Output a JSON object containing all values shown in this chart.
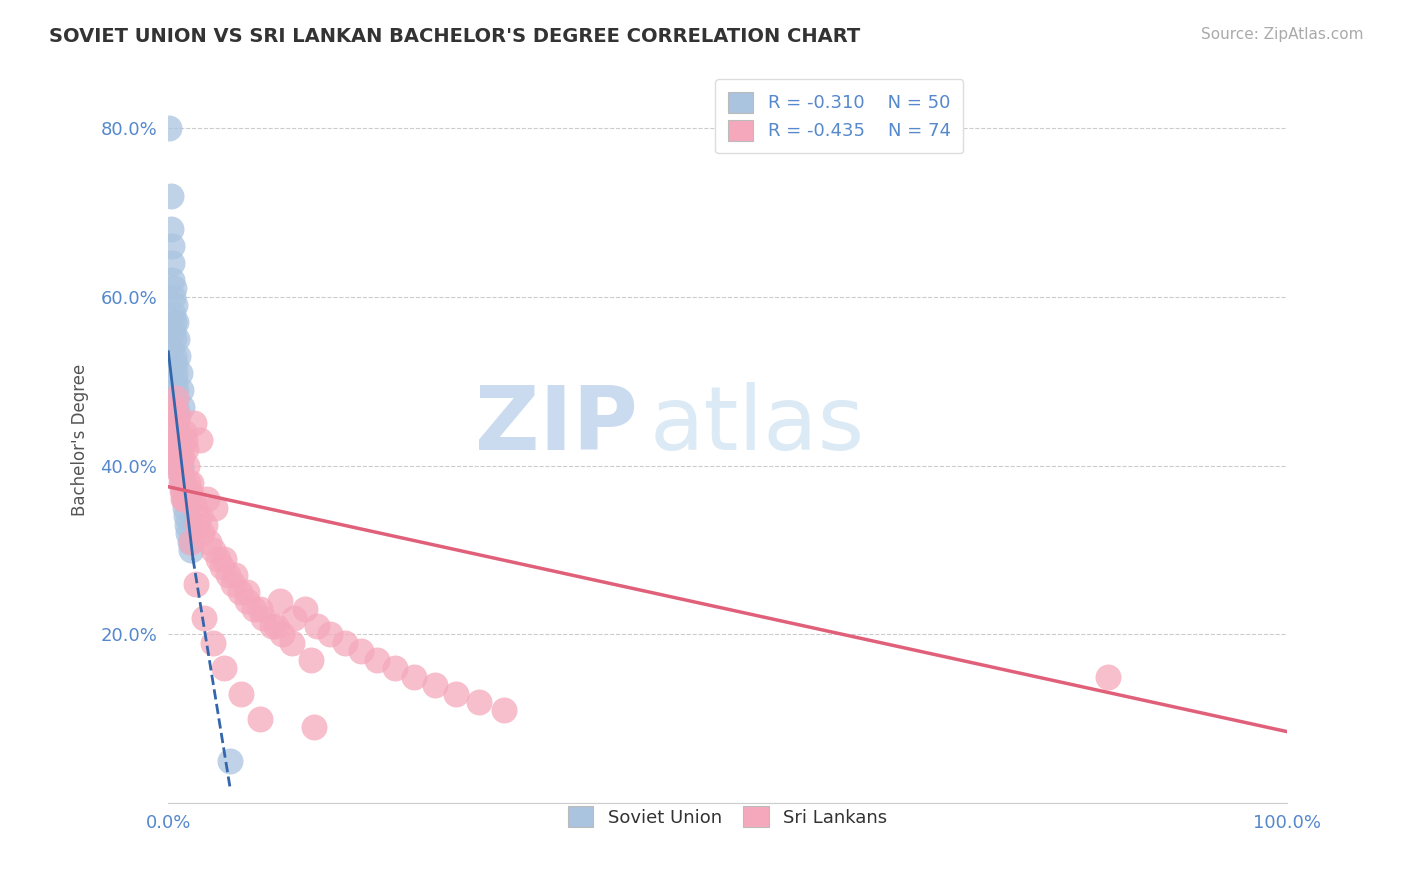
{
  "title": "SOVIET UNION VS SRI LANKAN BACHELOR'S DEGREE CORRELATION CHART",
  "source": "Source: ZipAtlas.com",
  "ylabel": "Bachelor's Degree",
  "blue_R": -0.31,
  "blue_N": 50,
  "pink_R": -0.435,
  "pink_N": 74,
  "blue_color": "#aac4e0",
  "pink_color": "#f5a8bc",
  "blue_line_color": "#3366aa",
  "pink_line_color": "#e0607a",
  "watermark_zip": "ZIP",
  "watermark_atlas": "atlas",
  "blue_scatter_x": [
    0.001,
    0.002,
    0.002,
    0.003,
    0.003,
    0.003,
    0.004,
    0.004,
    0.004,
    0.005,
    0.005,
    0.005,
    0.006,
    0.006,
    0.006,
    0.007,
    0.007,
    0.007,
    0.008,
    0.008,
    0.008,
    0.009,
    0.009,
    0.01,
    0.01,
    0.01,
    0.011,
    0.011,
    0.012,
    0.012,
    0.013,
    0.013,
    0.014,
    0.015,
    0.015,
    0.016,
    0.017,
    0.018,
    0.019,
    0.02,
    0.005,
    0.006,
    0.007,
    0.008,
    0.009,
    0.01,
    0.011,
    0.012,
    0.002,
    0.055
  ],
  "blue_scatter_y": [
    0.8,
    0.72,
    0.68,
    0.66,
    0.64,
    0.62,
    0.6,
    0.58,
    0.56,
    0.57,
    0.55,
    0.53,
    0.51,
    0.52,
    0.5,
    0.49,
    0.48,
    0.47,
    0.46,
    0.45,
    0.44,
    0.43,
    0.42,
    0.41,
    0.4,
    0.42,
    0.39,
    0.4,
    0.38,
    0.39,
    0.37,
    0.38,
    0.36,
    0.35,
    0.36,
    0.34,
    0.33,
    0.32,
    0.31,
    0.3,
    0.61,
    0.59,
    0.57,
    0.55,
    0.53,
    0.51,
    0.49,
    0.47,
    0.54,
    0.05
  ],
  "pink_scatter_x": [
    0.003,
    0.005,
    0.006,
    0.007,
    0.008,
    0.009,
    0.01,
    0.011,
    0.012,
    0.013,
    0.014,
    0.015,
    0.016,
    0.017,
    0.018,
    0.019,
    0.02,
    0.022,
    0.024,
    0.026,
    0.028,
    0.03,
    0.033,
    0.036,
    0.04,
    0.044,
    0.048,
    0.053,
    0.058,
    0.064,
    0.07,
    0.077,
    0.085,
    0.093,
    0.102,
    0.112,
    0.122,
    0.133,
    0.145,
    0.158,
    0.172,
    0.187,
    0.203,
    0.22,
    0.238,
    0.257,
    0.278,
    0.3,
    0.023,
    0.028,
    0.035,
    0.042,
    0.05,
    0.06,
    0.07,
    0.082,
    0.096,
    0.111,
    0.128,
    0.007,
    0.009,
    0.012,
    0.015,
    0.02,
    0.025,
    0.032,
    0.04,
    0.05,
    0.065,
    0.082,
    0.1,
    0.13,
    0.84,
    0.004
  ],
  "pink_scatter_y": [
    0.46,
    0.43,
    0.44,
    0.42,
    0.41,
    0.4,
    0.39,
    0.38,
    0.37,
    0.36,
    0.44,
    0.43,
    0.42,
    0.4,
    0.38,
    0.37,
    0.38,
    0.36,
    0.35,
    0.33,
    0.34,
    0.32,
    0.33,
    0.31,
    0.3,
    0.29,
    0.28,
    0.27,
    0.26,
    0.25,
    0.24,
    0.23,
    0.22,
    0.21,
    0.2,
    0.22,
    0.23,
    0.21,
    0.2,
    0.19,
    0.18,
    0.17,
    0.16,
    0.15,
    0.14,
    0.13,
    0.12,
    0.11,
    0.45,
    0.43,
    0.36,
    0.35,
    0.29,
    0.27,
    0.25,
    0.23,
    0.21,
    0.19,
    0.17,
    0.48,
    0.46,
    0.41,
    0.36,
    0.31,
    0.26,
    0.22,
    0.19,
    0.16,
    0.13,
    0.1,
    0.24,
    0.09,
    0.15,
    0.47
  ],
  "blue_line_x0": 0.0,
  "blue_line_y0": 0.535,
  "blue_line_x1": 0.022,
  "blue_line_y1": 0.29,
  "blue_line_dash_x1": 0.055,
  "blue_line_dash_y1": 0.02,
  "pink_line_x0": 0.0,
  "pink_line_y0": 0.375,
  "pink_line_x1": 1.0,
  "pink_line_y1": 0.085,
  "ylim": [
    0.0,
    0.86
  ],
  "xlim": [
    0.0,
    1.0
  ],
  "ytick_positions": [
    0.0,
    0.2,
    0.4,
    0.6,
    0.8
  ],
  "ytick_labels": [
    "",
    "20.0%",
    "40.0%",
    "60.0%",
    "80.0%"
  ],
  "xtick_positions": [
    0.0,
    0.25,
    0.5,
    0.75,
    1.0
  ],
  "xtick_labels": [
    "0.0%",
    "",
    "",
    "",
    "100.0%"
  ],
  "grid_color": "#cccccc",
  "background_color": "#ffffff",
  "title_color": "#333333",
  "tick_label_color": "#5588cc",
  "legend_text_color": "#5588cc",
  "source_color": "#aaaaaa"
}
